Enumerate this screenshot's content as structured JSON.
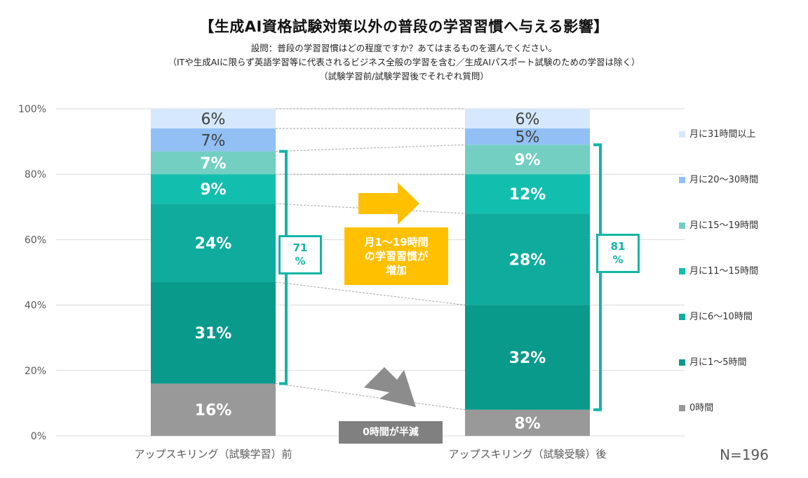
{
  "title": "【生成AI資格試験対策以外の普段の学習習慣へ与える影響】",
  "subtitle_lines": [
    "設問：普段の学習習慣はどの程度ですか？あてはまるものを選んでください。",
    "（ITや生成AIに限らず英語学習等に代表されるビジネス全般の学習を含む／生成AIパスポート試験のための学習は除く）",
    "（試験学習前/試験学習後でそれぞれ質問）"
  ],
  "n_label": "N=196",
  "callouts": {
    "increase": "月1～19時間の学習習慣が増加",
    "increase_lines": [
      "月1～19時間",
      "の学習習慣が",
      "増加"
    ],
    "zero_half": "0時間が半減"
  },
  "brackets": {
    "before": "71\n%",
    "after": "81\n%",
    "before_lines": [
      "71",
      "%"
    ],
    "after_lines": [
      "81",
      "%"
    ]
  },
  "chart_data": {
    "type": "bar",
    "stacked": true,
    "ylim": [
      0,
      100
    ],
    "yticks": [
      "0%",
      "20%",
      "40%",
      "60%",
      "80%",
      "100%"
    ],
    "categories": [
      "アップスキリング（試験学習）前",
      "アップスキリング（試験受験）後"
    ],
    "series": [
      {
        "name": "0時間",
        "values": [
          16,
          8
        ],
        "labels": [
          "16%",
          "8%"
        ],
        "color": "#999999",
        "text_color": "#ffffff"
      },
      {
        "name": "月に1～5時間",
        "values": [
          31,
          32
        ],
        "labels": [
          "31%",
          "32%"
        ],
        "color": "#0a9a8c",
        "text_color": "#ffffff"
      },
      {
        "name": "月に6～10時間",
        "values": [
          24,
          28
        ],
        "labels": [
          "24%",
          "28%"
        ],
        "color": "#0fac9d",
        "text_color": "#ffffff"
      },
      {
        "name": "月に11～15時間",
        "values": [
          9,
          12
        ],
        "labels": [
          "9%",
          "12%"
        ],
        "color": "#12bfae",
        "text_color": "#ffffff"
      },
      {
        "name": "月に15～19時間",
        "values": [
          7,
          9
        ],
        "labels": [
          "7%",
          "9%"
        ],
        "color": "#72cfc2",
        "text_color": "#ffffff"
      },
      {
        "name": "月に20～30時間",
        "values": [
          7,
          5
        ],
        "labels": [
          "7%",
          "5%"
        ],
        "color": "#92c0f5",
        "text_color": "#404040"
      },
      {
        "name": "月に31時間以上",
        "values": [
          6,
          6
        ],
        "labels": [
          "6%",
          "6%"
        ],
        "color": "#d6e8fb",
        "text_color": "#404040"
      }
    ],
    "legend_order": [
      "月に31時間以上",
      "月に20～30時間",
      "月に15～19時間",
      "月に11～15時間",
      "月に6～10時間",
      "月に1～5時間",
      "0時間"
    ],
    "legend_position": "right"
  }
}
